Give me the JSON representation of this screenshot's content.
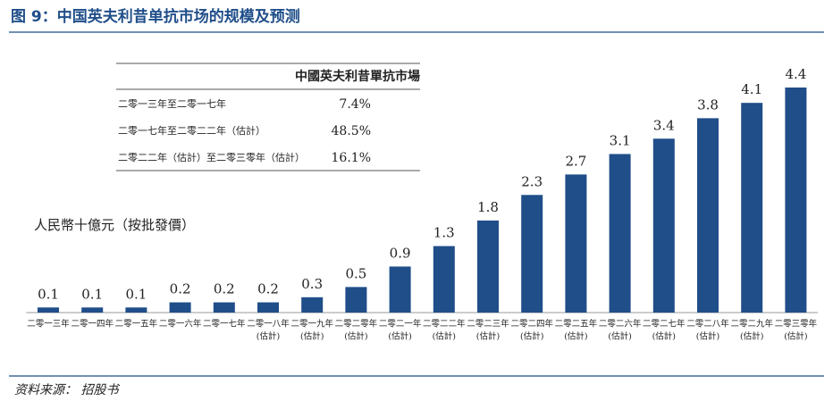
{
  "title": "图 9：中国英夫利昔单抗市场的规模及预测",
  "source": "资料来源： 招股书",
  "inset_table": {
    "header": "中國英夫利昔單抗市場",
    "rows": [
      [
        "二零一三年至二零一七年",
        "7.4%"
      ],
      [
        "二零一七年至二零二二年（估計）",
        "48.5%"
      ],
      [
        "二零二二年（估計）至二零三零年（估計）",
        "16.1%"
      ]
    ]
  },
  "chart_data": {
    "type": "bar",
    "y_label": "人民幣十億元（按批發價）",
    "categories": [
      [
        "二零一三年"
      ],
      [
        "二零一四年"
      ],
      [
        "二零一五年"
      ],
      [
        "二零一六年"
      ],
      [
        "二零一七年"
      ],
      [
        "二零一八年",
        "(估計)"
      ],
      [
        "二零一九年",
        "(估計)"
      ],
      [
        "二零二零年",
        "(估計)"
      ],
      [
        "二零二一年",
        "(估計)"
      ],
      [
        "二零二二年",
        "(估計)"
      ],
      [
        "二零二三年",
        "(估計)"
      ],
      [
        "二零二四年",
        "(估計)"
      ],
      [
        "二零二五年",
        "(估計)"
      ],
      [
        "二零二六年",
        "(估計)"
      ],
      [
        "二零二七年",
        "(估計)"
      ],
      [
        "二零二八年",
        "(估計)"
      ],
      [
        "二零二九年",
        "(估計)"
      ],
      [
        "二零三零年",
        "(估計)"
      ]
    ],
    "values": [
      0.1,
      0.1,
      0.1,
      0.2,
      0.2,
      0.2,
      0.3,
      0.5,
      0.9,
      1.3,
      1.8,
      2.3,
      2.7,
      3.1,
      3.4,
      3.8,
      4.1,
      4.4
    ],
    "color": "#1f4e89",
    "ylim": [
      0,
      4.4
    ]
  }
}
